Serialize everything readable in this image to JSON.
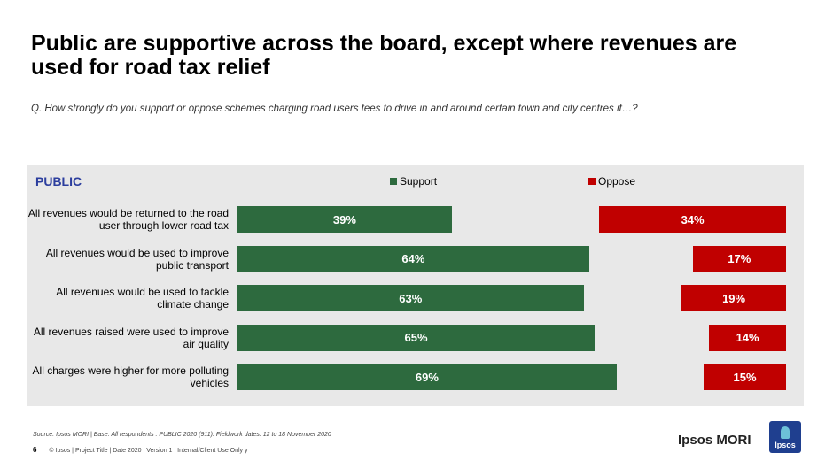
{
  "title": "Public are supportive across the board, except where revenues are used for road tax relief",
  "question": "Q. How strongly do you support or oppose schemes charging road users fees to drive in and around certain town and city centres if…?",
  "panel_label": "PUBLIC",
  "colors": {
    "support": "#2d6a3e",
    "oppose": "#c00000",
    "panel": "#e8e8e8",
    "label_blue": "#2c3e9e"
  },
  "chart_data": {
    "type": "bar",
    "orientation": "horizontal",
    "categories": [
      "All revenues would be returned to the road user through lower road tax",
      "All revenues would be used to improve public transport",
      "All revenues would be used to tackle climate change",
      "All revenues raised were used to improve air quality",
      "All charges were higher for more polluting vehicles"
    ],
    "series": [
      {
        "name": "Support",
        "values": [
          39,
          64,
          63,
          65,
          69
        ],
        "labels": [
          "39%",
          "64%",
          "63%",
          "65%",
          "69%"
        ]
      },
      {
        "name": "Oppose",
        "values": [
          34,
          17,
          19,
          14,
          15
        ],
        "labels": [
          "34%",
          "17%",
          "19%",
          "14%",
          "15%"
        ]
      }
    ],
    "legend": "top",
    "unit": "%"
  },
  "footer": {
    "source": "Source: Ipsos MORI | Base: All respondents : PUBLIC 2020 (911). Fieldwork dates: 12 to 18 November 2020",
    "page_number": "6",
    "line": "© Ipsos | Project Title | Date 2020 | Version 1 | Internal/Client Use Only y"
  },
  "brand": {
    "name": "Ipsos MORI",
    "logo_text": "Ipsos"
  }
}
